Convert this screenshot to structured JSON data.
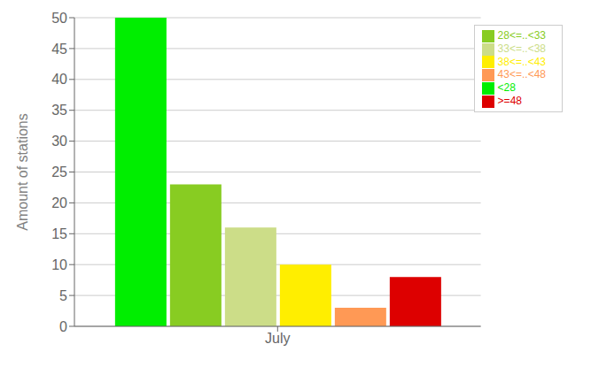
{
  "chart_data": {
    "type": "bar",
    "categories": [
      "July"
    ],
    "series": [
      {
        "name": "<28",
        "color": "#00ee00",
        "values": [
          50
        ]
      },
      {
        "name": "28<=..<33",
        "color": "#88cc22",
        "values": [
          23
        ]
      },
      {
        "name": "33<=..<38",
        "color": "#ccdd88",
        "values": [
          16
        ]
      },
      {
        "name": "38<=..<43",
        "color": "#ffee00",
        "values": [
          10
        ]
      },
      {
        "name": "43<=..<48",
        "color": "#ff9955",
        "values": [
          3
        ]
      },
      {
        "name": ">=48",
        "color": "#dd0000",
        "values": [
          8
        ]
      }
    ],
    "ylabel": "Amount of stations",
    "ylim": [
      0,
      50
    ],
    "yticks": [
      0,
      5,
      10,
      15,
      20,
      25,
      30,
      35,
      40,
      45,
      50
    ],
    "grid": true,
    "legend": "upper right"
  }
}
